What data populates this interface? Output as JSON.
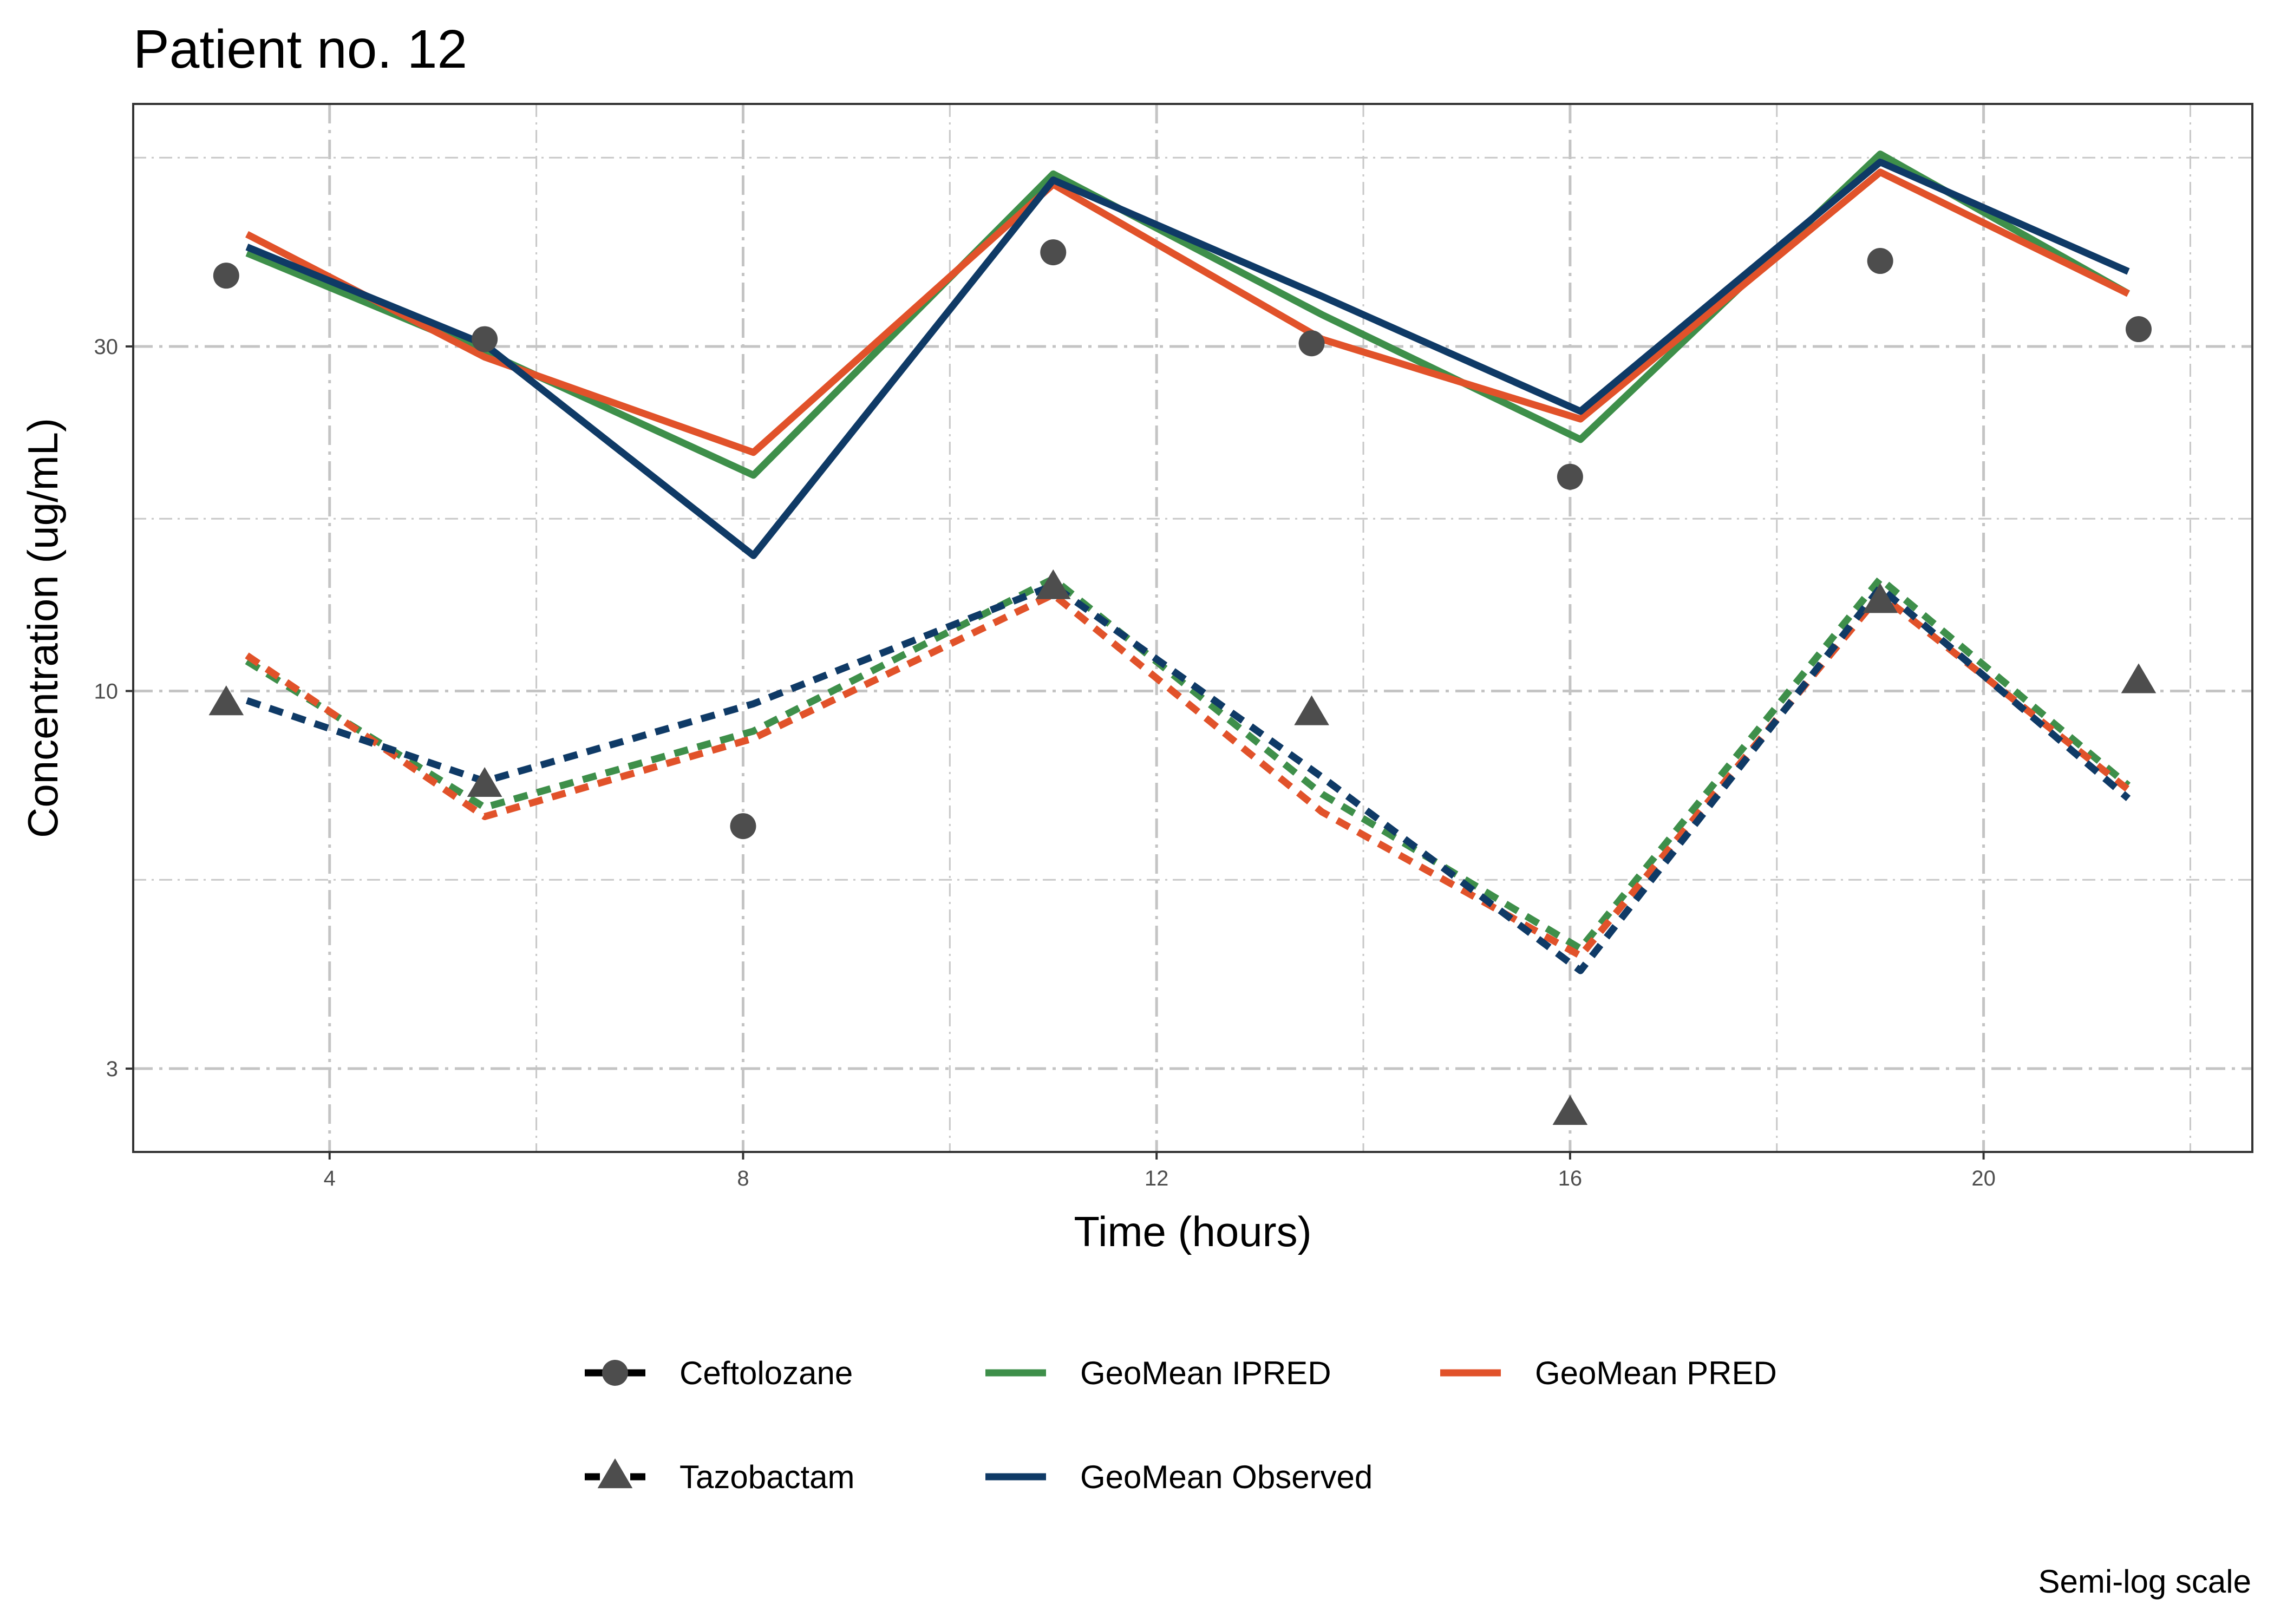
{
  "chart_data": {
    "type": "line",
    "title": "Patient no. 12",
    "caption": "Semi-log scale",
    "xlabel": "Time (hours)",
    "ylabel": "Concentration (ug/mL)",
    "xlim": [
      2.1,
      22.6
    ],
    "ylim": [
      2.3,
      65
    ],
    "y_scale": "log",
    "x_ticks": [
      4,
      8,
      12,
      16,
      20
    ],
    "x_tick_labels": [
      "4",
      "8",
      "12",
      "16",
      "20"
    ],
    "y_ticks": [
      3,
      10,
      30
    ],
    "y_tick_labels": [
      "3",
      "10",
      "30"
    ],
    "grid": true,
    "legend_position": "bottom",
    "colors": {
      "ipred": "#3e8f4a",
      "pred": "#e1522a",
      "observed": "#0f3a66",
      "points": "#4d4d4d"
    },
    "legend": [
      {
        "label": "Ceftolozane",
        "kind": "analyte",
        "marker": "circle",
        "linetype": "solid"
      },
      {
        "label": "GeoMean IPRED",
        "kind": "series",
        "color": "#3e8f4a"
      },
      {
        "label": "GeoMean PRED",
        "kind": "series",
        "color": "#e1522a"
      },
      {
        "label": "Tazobactam",
        "kind": "analyte",
        "marker": "triangle",
        "linetype": "dashed"
      },
      {
        "label": "GeoMean Observed",
        "kind": "series",
        "color": "#0f3a66"
      }
    ],
    "points": [
      {
        "analyte": "Ceftolozane",
        "marker": "circle",
        "x": [
          3.0,
          5.5,
          8.0,
          11.0,
          13.5,
          16.0,
          19.0,
          21.5
        ],
        "y": [
          37.6,
          30.7,
          6.5,
          40.5,
          30.3,
          19.8,
          39.4,
          31.7
        ]
      },
      {
        "analyte": "Tazobactam",
        "marker": "triangle",
        "x": [
          3.0,
          5.5,
          11.0,
          13.5,
          16.0,
          19.0,
          21.5
        ],
        "y": [
          9.6,
          7.4,
          13.9,
          9.3,
          2.6,
          13.3,
          10.3
        ]
      }
    ],
    "lines": [
      {
        "series": "GeoMean IPRED",
        "analyte": "Ceftolozane",
        "linetype": "solid",
        "color": "#3e8f4a",
        "x": [
          3.2,
          5.5,
          8.1,
          11.0,
          13.6,
          16.1,
          19.0,
          21.4
        ],
        "y": [
          40.4,
          29.5,
          19.9,
          52.0,
          33.2,
          22.3,
          55.4,
          35.5
        ]
      },
      {
        "series": "GeoMean PRED",
        "analyte": "Ceftolozane",
        "linetype": "solid",
        "color": "#e1522a",
        "x": [
          3.2,
          5.5,
          8.1,
          11.0,
          13.6,
          16.1,
          19.0,
          21.4
        ],
        "y": [
          42.9,
          29.0,
          21.4,
          50.3,
          30.7,
          23.8,
          52.3,
          35.5
        ]
      },
      {
        "series": "GeoMean Observed",
        "analyte": "Ceftolozane",
        "linetype": "solid",
        "color": "#0f3a66",
        "x": [
          3.2,
          5.5,
          8.1,
          11.0,
          13.6,
          16.1,
          19.0,
          21.4
        ],
        "y": [
          41.2,
          30.2,
          15.4,
          51.0,
          35.2,
          24.4,
          54.0,
          38.1
        ]
      },
      {
        "series": "GeoMean IPRED",
        "analyte": "Tazobactam",
        "linetype": "dashed",
        "color": "#3e8f4a",
        "x": [
          3.2,
          5.5,
          8.1,
          11.0,
          13.6,
          16.1,
          19.0,
          21.4
        ],
        "y": [
          11.0,
          6.9,
          8.8,
          14.3,
          7.2,
          4.4,
          14.3,
          7.4
        ]
      },
      {
        "series": "GeoMean PRED",
        "analyte": "Tazobactam",
        "linetype": "dashed",
        "color": "#e1522a",
        "x": [
          3.2,
          5.5,
          8.1,
          11.0,
          13.6,
          16.1,
          19.0,
          21.4
        ],
        "y": [
          11.2,
          6.7,
          8.6,
          13.6,
          6.8,
          4.3,
          13.6,
          7.3
        ]
      },
      {
        "series": "GeoMean Observed",
        "analyte": "Tazobactam",
        "linetype": "dashed",
        "color": "#0f3a66",
        "x": [
          3.2,
          5.5,
          8.1,
          11.0,
          13.6,
          16.1,
          19.0,
          21.4
        ],
        "y": [
          9.7,
          7.5,
          9.6,
          14.0,
          7.6,
          4.1,
          13.9,
          7.1
        ]
      }
    ]
  }
}
